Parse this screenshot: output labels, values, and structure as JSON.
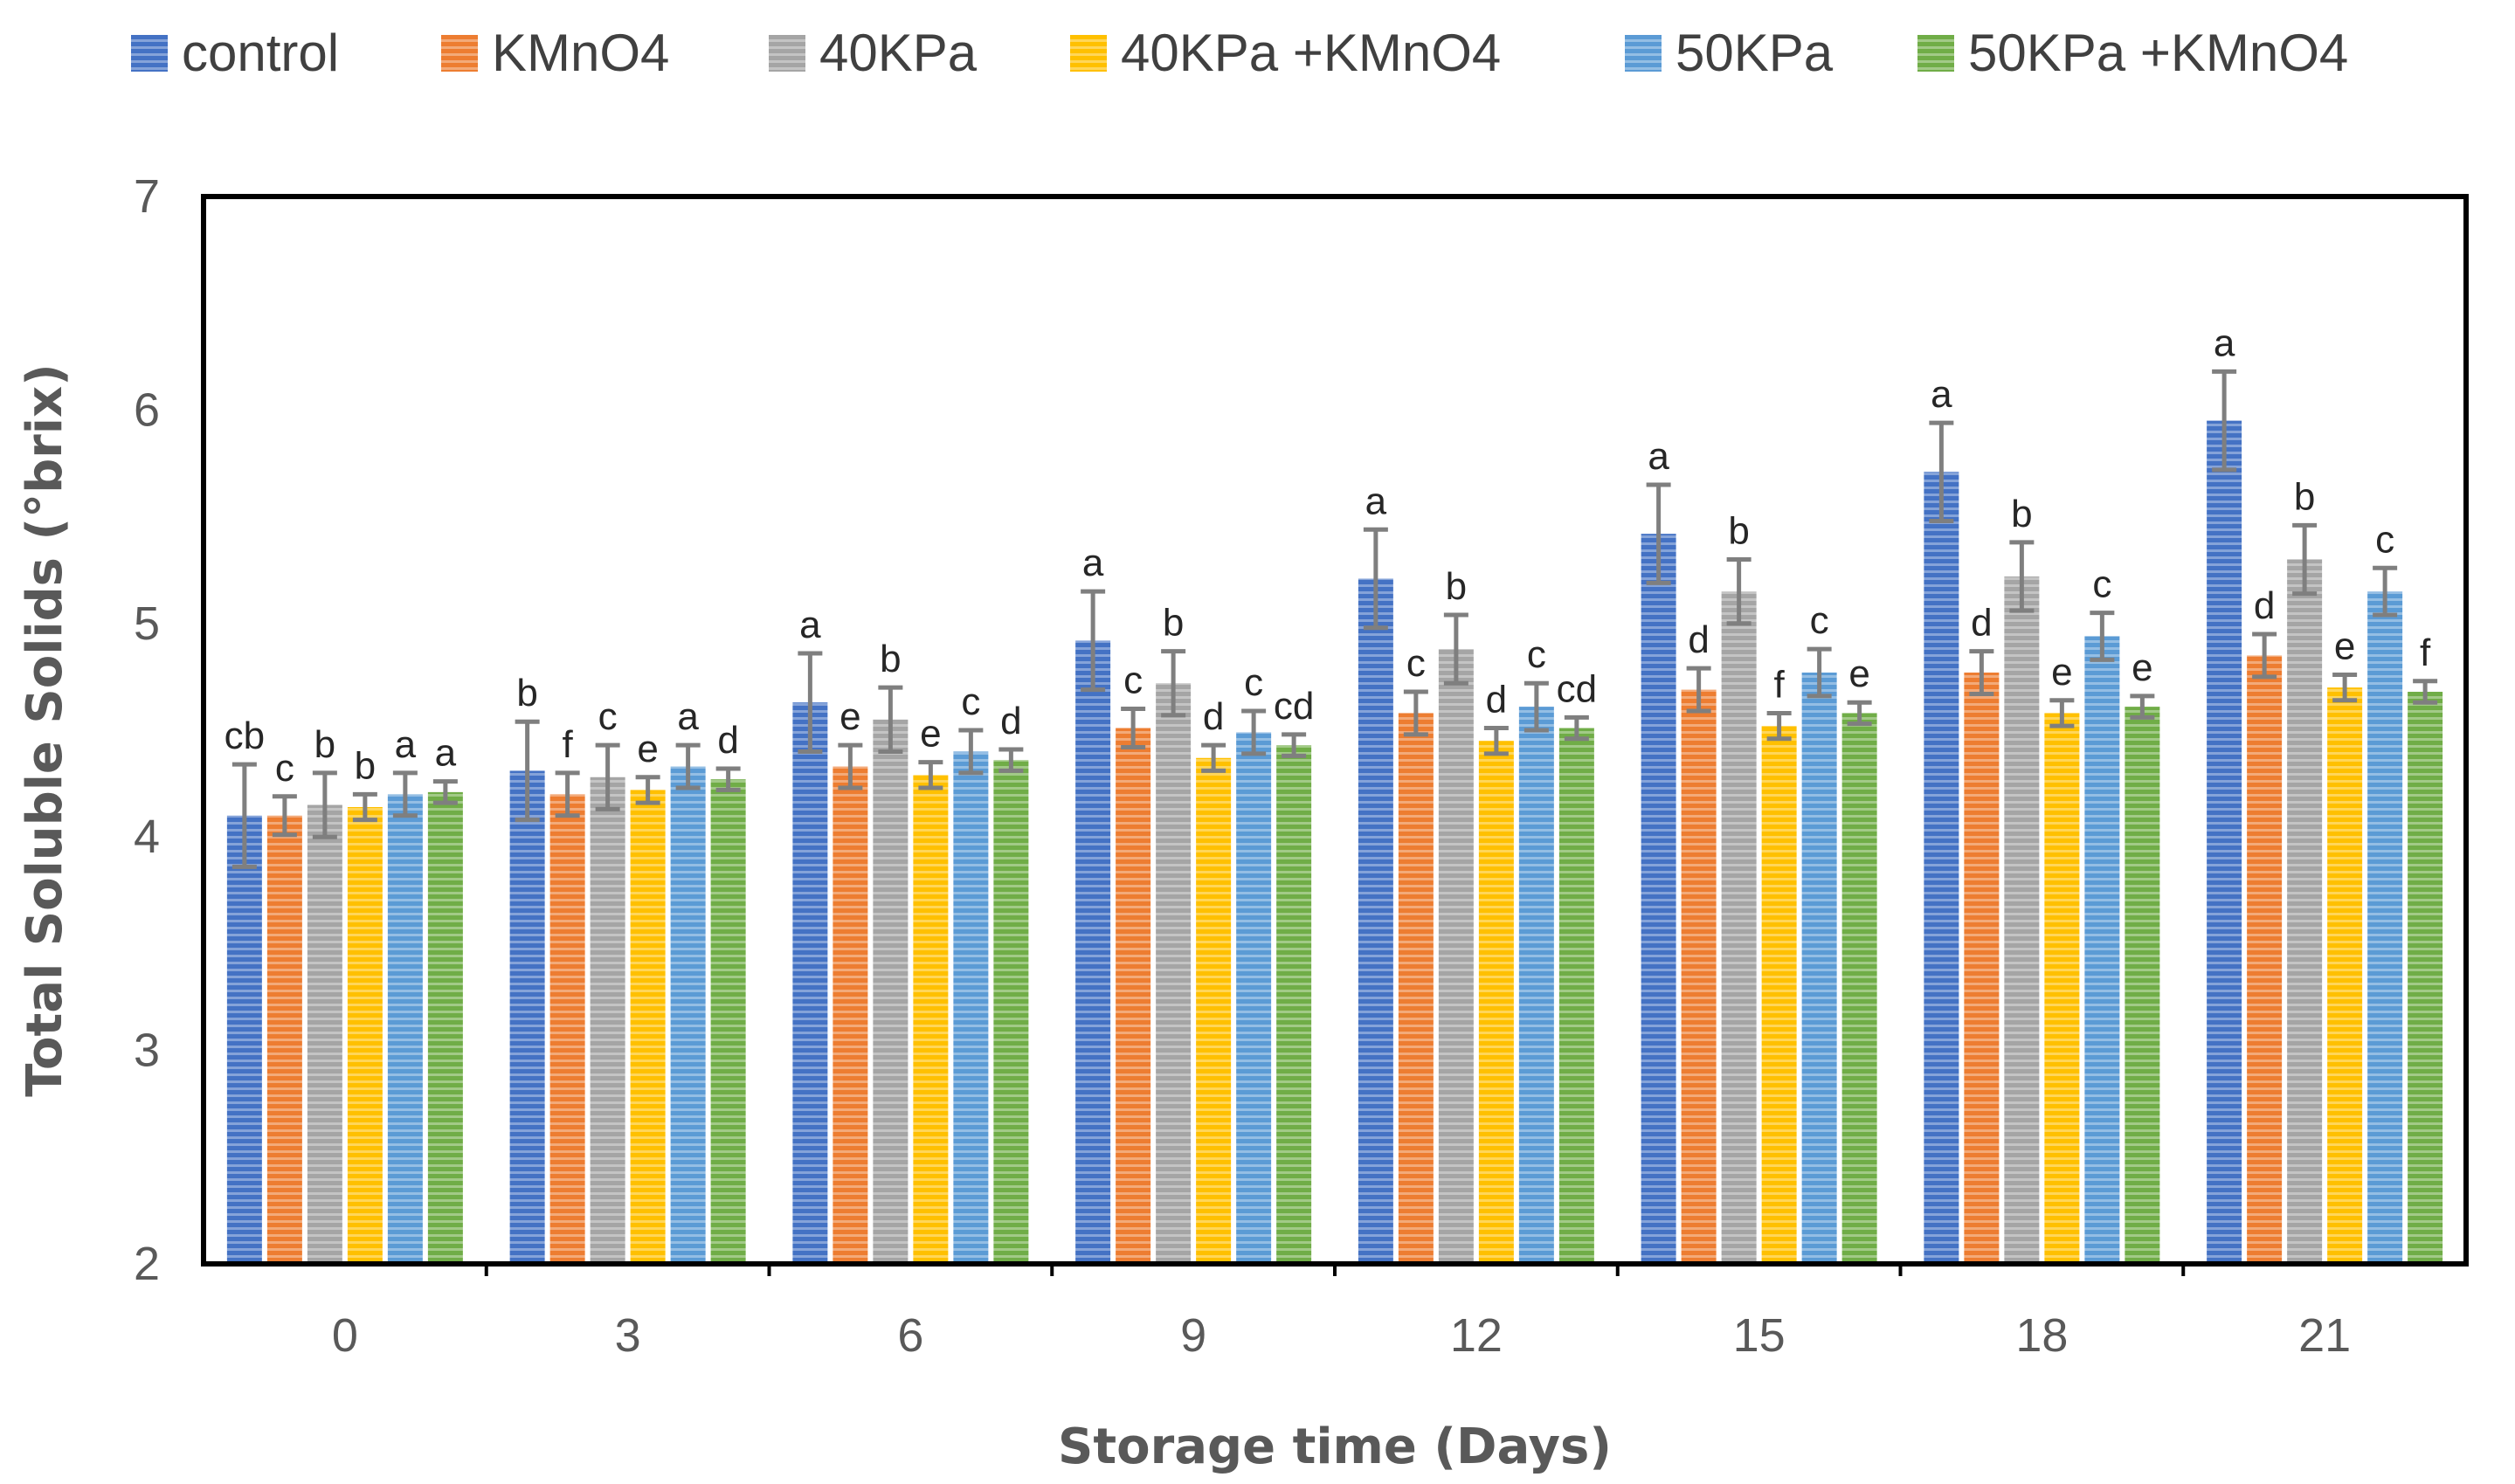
{
  "chart_data": {
    "type": "bar",
    "title": "",
    "xlabel": "Storage time (Days)",
    "ylabel": "Total Soluble Solids (°brix)",
    "ylim": [
      2,
      7
    ],
    "yticks": [
      "2",
      "3",
      "4",
      "5",
      "6",
      "7"
    ],
    "categories": [
      "0",
      "3",
      "6",
      "9",
      "12",
      "15",
      "18",
      "21"
    ],
    "legend_position": "top",
    "grid": false,
    "series": [
      {
        "name": "control",
        "color": "#4472C4",
        "values": [
          4.1,
          4.31,
          4.63,
          4.92,
          5.21,
          5.42,
          5.71,
          5.95
        ],
        "errors": [
          0.24,
          0.23,
          0.23,
          0.23,
          0.23,
          0.23,
          0.23,
          0.23
        ],
        "labels": [
          "cb",
          "b",
          "a",
          "a",
          "a",
          "a",
          "a",
          "a"
        ]
      },
      {
        "name": "KMnO4",
        "color": "#ED7D31",
        "values": [
          4.1,
          4.2,
          4.33,
          4.51,
          4.58,
          4.69,
          4.77,
          4.85
        ],
        "errors": [
          0.09,
          0.1,
          0.1,
          0.09,
          0.1,
          0.1,
          0.1,
          0.1
        ],
        "labels": [
          "c",
          "f",
          "e",
          "c",
          "c",
          "d",
          "d",
          "d"
        ]
      },
      {
        "name": "40KPa",
        "color": "#A5A5A5",
        "values": [
          4.15,
          4.28,
          4.55,
          4.72,
          4.88,
          5.15,
          5.22,
          5.3
        ],
        "errors": [
          0.15,
          0.15,
          0.15,
          0.15,
          0.16,
          0.15,
          0.16,
          0.16
        ],
        "labels": [
          "b",
          "c",
          "b",
          "b",
          "b",
          "b",
          "b",
          "b"
        ]
      },
      {
        "name": "40KPa +KMnO4",
        "color": "#FFC000",
        "values": [
          4.14,
          4.22,
          4.29,
          4.37,
          4.45,
          4.52,
          4.58,
          4.7
        ],
        "errors": [
          0.06,
          0.06,
          0.06,
          0.06,
          0.06,
          0.06,
          0.06,
          0.06
        ],
        "labels": [
          "b",
          "e",
          "e",
          "d",
          "d",
          "f",
          "e",
          "e"
        ]
      },
      {
        "name": "50KPa",
        "color": "#5B9BD5",
        "values": [
          4.2,
          4.33,
          4.4,
          4.49,
          4.61,
          4.77,
          4.94,
          5.15
        ],
        "errors": [
          0.1,
          0.1,
          0.1,
          0.1,
          0.11,
          0.11,
          0.11,
          0.11
        ],
        "labels": [
          "a",
          "a",
          "c",
          "c",
          "c",
          "c",
          "c",
          "c"
        ]
      },
      {
        "name": "50KPa +KMnO4",
        "color": "#70AD47",
        "values": [
          4.21,
          4.27,
          4.36,
          4.43,
          4.51,
          4.58,
          4.61,
          4.68
        ],
        "errors": [
          0.05,
          0.05,
          0.05,
          0.05,
          0.05,
          0.05,
          0.05,
          0.05
        ],
        "labels": [
          "a",
          "d",
          "d",
          "cd",
          "cd",
          "e",
          "e",
          "f"
        ]
      }
    ]
  }
}
